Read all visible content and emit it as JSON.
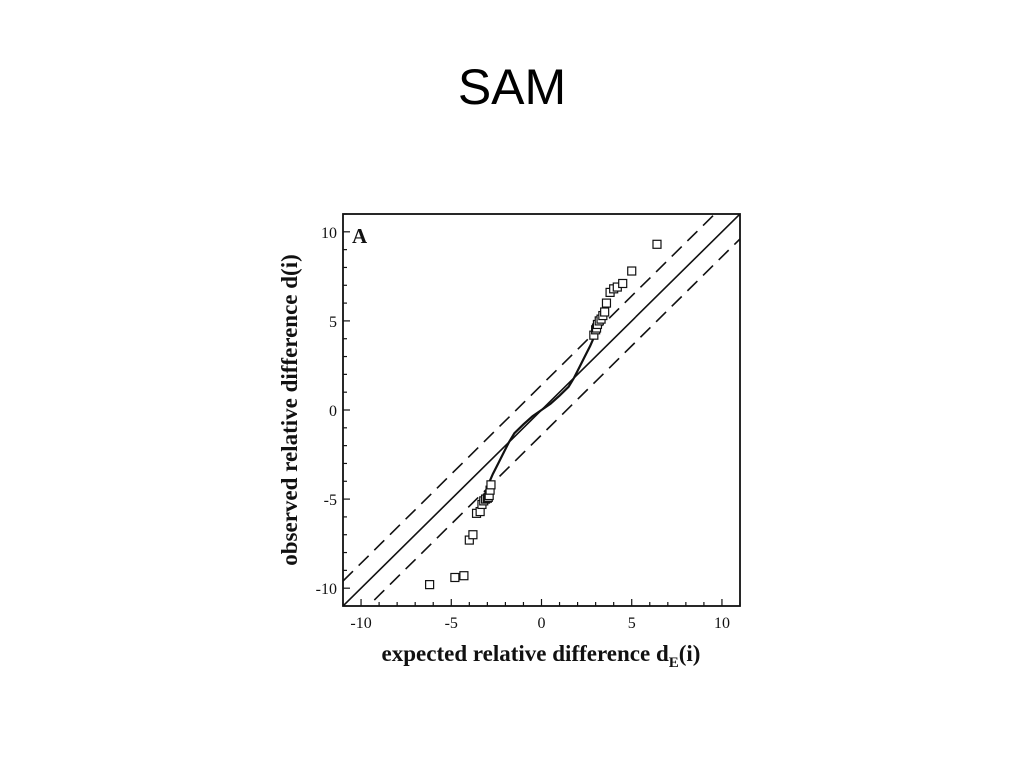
{
  "slide": {
    "title": "SAM"
  },
  "chart_data": {
    "type": "scatter",
    "panel_label": "A",
    "xlabel": "expected relative difference",
    "xlabel_symbol": "d",
    "xlabel_subscript": "E",
    "xlabel_suffix": "(i)",
    "ylabel": "observed relative difference d(i)",
    "xlim": [
      -11,
      11
    ],
    "ylim": [
      -11,
      11
    ],
    "xticks": [
      -10,
      -5,
      0,
      5,
      10
    ],
    "yticks": [
      -10,
      -5,
      0,
      5,
      10
    ],
    "grid": false,
    "reference_lines": [
      {
        "name": "identity",
        "style": "solid",
        "slope": 1,
        "intercept": 0
      },
      {
        "name": "upper threshold",
        "style": "dashed",
        "slope": 1,
        "intercept": 1.4
      },
      {
        "name": "lower threshold",
        "style": "dashed",
        "slope": 1,
        "intercept": -1.4
      }
    ],
    "curve": {
      "style": "solid",
      "x": [
        -3.0,
        -2.7,
        -2.4,
        -2.1,
        -1.8,
        -1.5,
        -1.0,
        -0.5,
        0,
        0.5,
        1.0,
        1.5,
        1.8,
        2.1,
        2.4,
        2.7,
        3.0
      ],
      "y": [
        -4.3,
        -3.6,
        -3.0,
        -2.4,
        -1.8,
        -1.3,
        -0.8,
        -0.35,
        0,
        0.35,
        0.8,
        1.3,
        1.8,
        2.4,
        3.0,
        3.6,
        4.3
      ]
    },
    "series": [
      {
        "marker": "open-square",
        "x": [
          -6.2,
          -4.8,
          -4.3,
          -4.0,
          -3.8,
          -3.6,
          -3.4,
          -3.3,
          -3.2,
          -3.1,
          -3.0,
          -2.95,
          -2.9,
          -2.85,
          -2.8,
          2.9,
          3.0,
          3.05,
          3.1,
          3.2,
          3.3,
          3.4,
          3.5,
          3.6,
          3.8,
          4.0,
          4.2,
          4.5,
          5.0,
          6.4
        ],
        "y": [
          -9.8,
          -9.4,
          -9.3,
          -7.3,
          -7.0,
          -5.8,
          -5.7,
          -5.3,
          -5.1,
          -5.0,
          -4.95,
          -4.9,
          -4.8,
          -4.5,
          -4.2,
          4.2,
          4.5,
          4.6,
          4.8,
          5.0,
          5.1,
          5.3,
          5.5,
          6.0,
          6.6,
          6.8,
          6.9,
          7.1,
          7.8,
          9.3
        ]
      }
    ]
  }
}
